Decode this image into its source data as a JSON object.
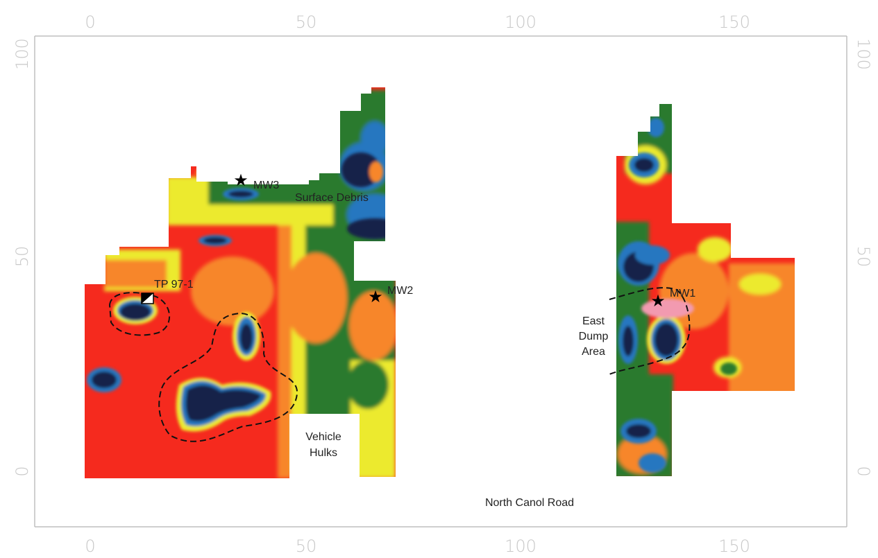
{
  "map": {
    "x_ticks": [
      "0",
      "50",
      "100",
      "150"
    ],
    "y_ticks": [
      "0",
      "50",
      "100"
    ],
    "labels": {
      "tp97": "TP 97-1",
      "mw1": "MW1",
      "mw2": "MW2",
      "mw3": "MW3",
      "surface_debris": "Surface Debris",
      "vehicle_hulks_1": "Vehicle",
      "vehicle_hulks_2": "Hulks",
      "east_dump_1": "East",
      "east_dump_2": "Dump",
      "east_dump_3": "Area",
      "road": "North Canol Road"
    },
    "colors": {
      "red": "#f52a1e",
      "orange": "#f7862a",
      "yellow": "#ecea2e",
      "green": "#2c7a2e",
      "blue": "#2877c0",
      "navy": "#18204a",
      "pink": "#f29ab0"
    },
    "x_range": [
      -7,
      180
    ],
    "y_range": [
      -10,
      102
    ]
  }
}
